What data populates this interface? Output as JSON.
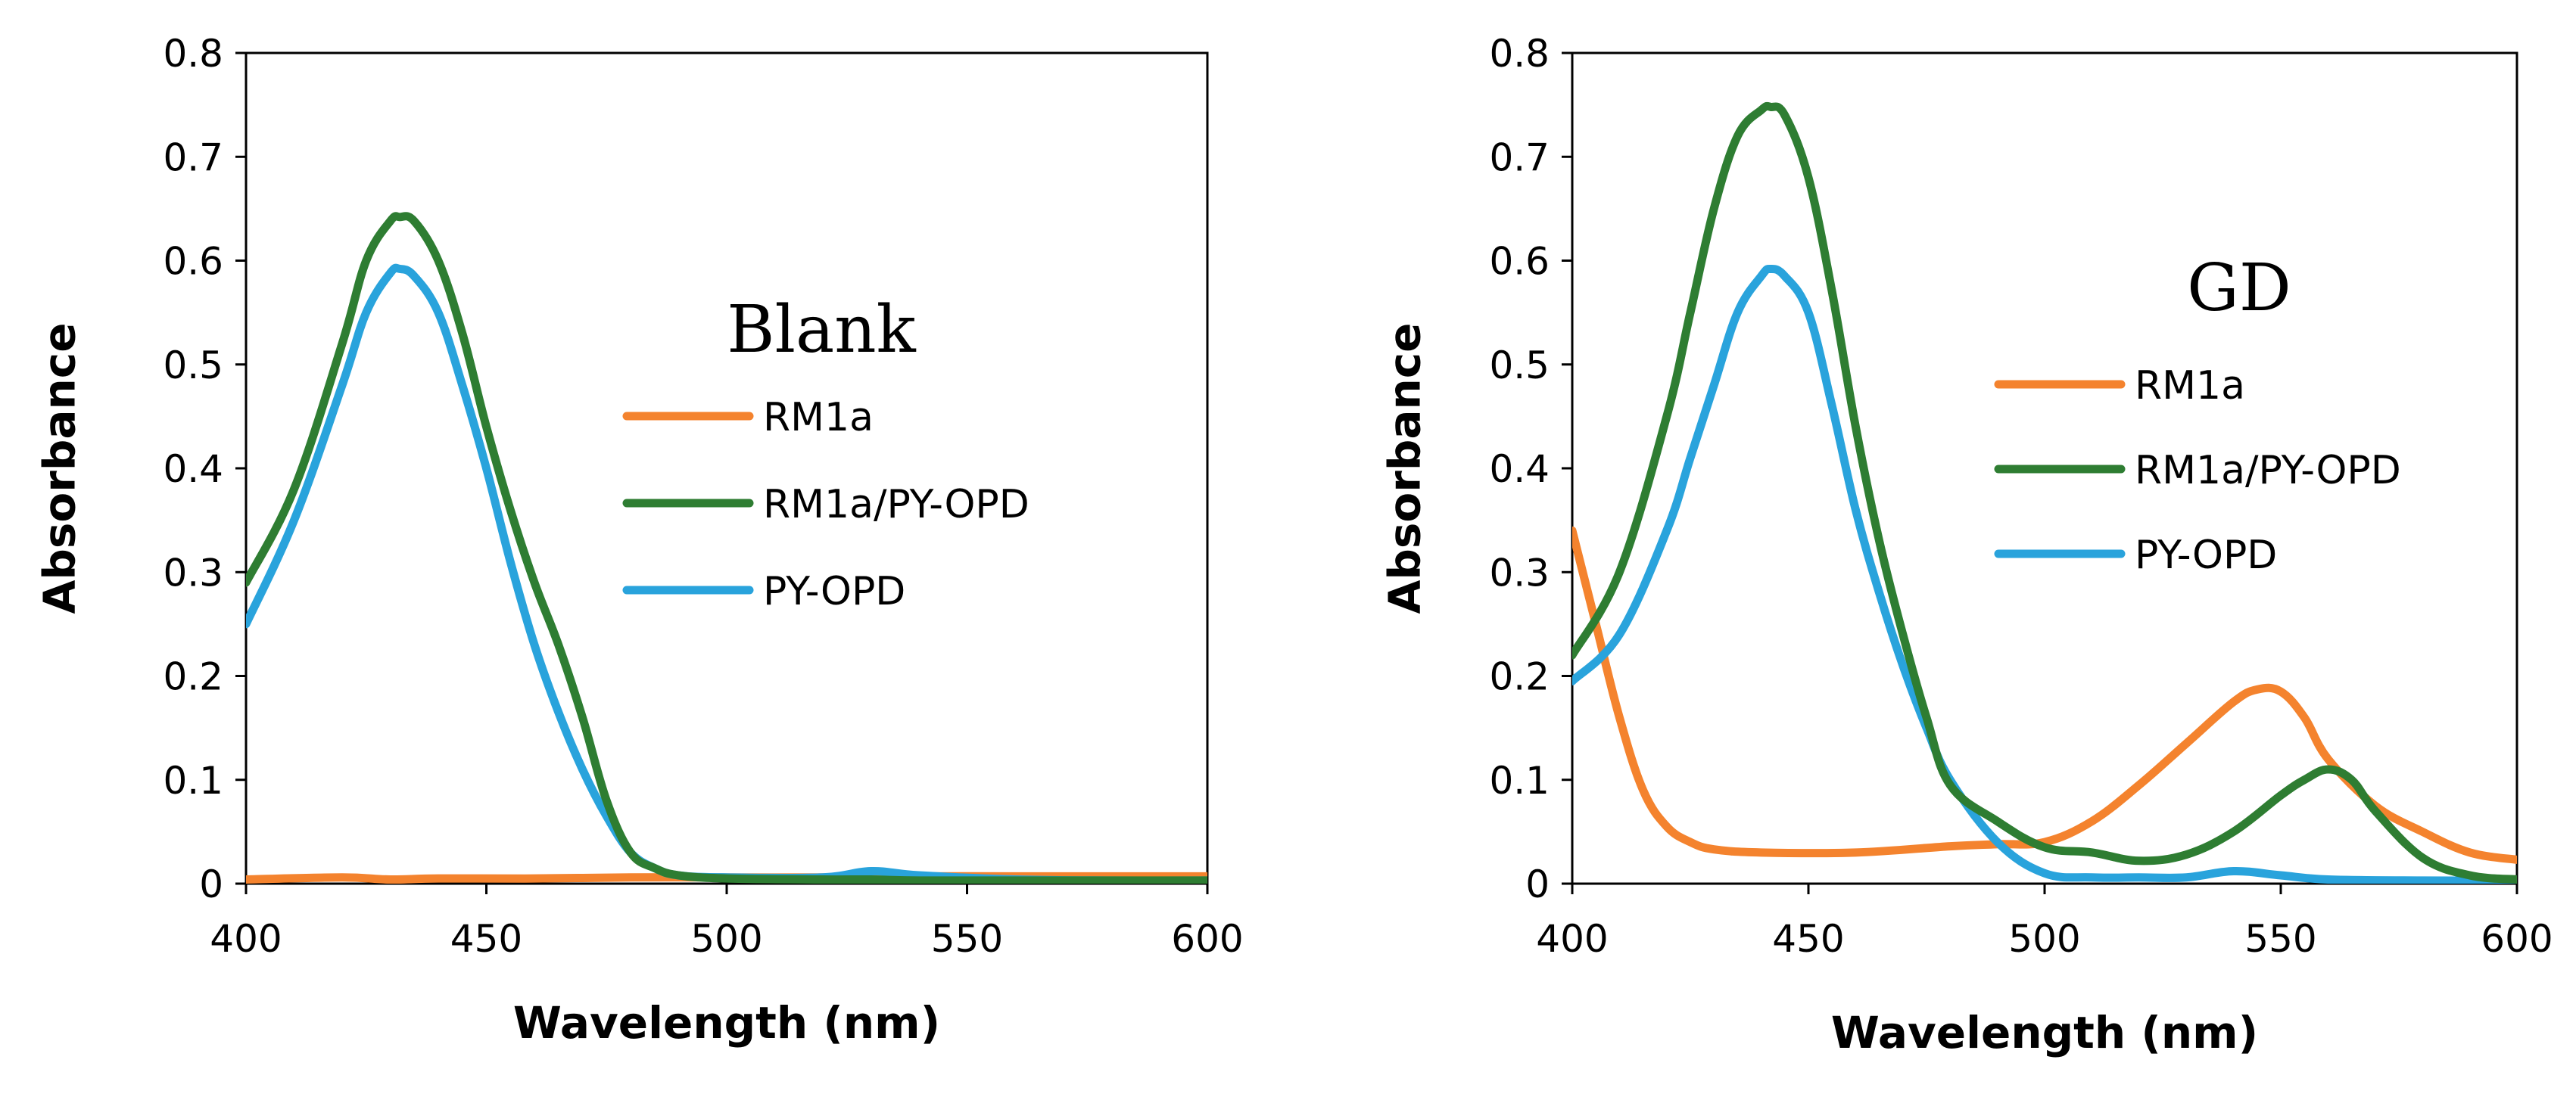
{
  "chart_data": [
    {
      "type": "line",
      "title": "Blank",
      "xlabel": "Wavelength (nm)",
      "ylabel": "Absorbance",
      "xlim": [
        400,
        600
      ],
      "ylim": [
        0,
        0.8
      ],
      "xticks": [
        400,
        450,
        500,
        550,
        600
      ],
      "xtick_labels": [
        "400",
        "450",
        "500",
        "550",
        "600"
      ],
      "yticks": [
        0,
        0.1,
        0.2,
        0.3,
        0.4,
        0.5,
        0.6,
        0.7,
        0.8
      ],
      "ytick_labels": [
        "0",
        "0.1",
        "0.2",
        "0.3",
        "0.4",
        "0.5",
        "0.6",
        "0.7",
        "0.8"
      ],
      "grid": false,
      "legend_position": "center-right",
      "series": [
        {
          "name": "RM1a",
          "color": "#F4832E",
          "x": [
            400,
            420,
            430,
            440,
            460,
            480,
            500,
            520,
            540,
            560,
            580,
            600
          ],
          "y": [
            0.004,
            0.006,
            0.004,
            0.005,
            0.005,
            0.006,
            0.006,
            0.006,
            0.007,
            0.007,
            0.007,
            0.007
          ]
        },
        {
          "name": "RM1a/PY-OPD",
          "color": "#2E7D32",
          "x": [
            400,
            410,
            420,
            425,
            430,
            432,
            435,
            440,
            445,
            450,
            455,
            460,
            465,
            470,
            475,
            480,
            485,
            490,
            500,
            520,
            530,
            540,
            560,
            580,
            600
          ],
          "y": [
            0.29,
            0.38,
            0.52,
            0.6,
            0.638,
            0.642,
            0.638,
            0.6,
            0.53,
            0.44,
            0.36,
            0.29,
            0.23,
            0.16,
            0.08,
            0.03,
            0.015,
            0.008,
            0.005,
            0.004,
            0.004,
            0.003,
            0.003,
            0.003,
            0.003
          ]
        },
        {
          "name": "PY-OPD",
          "color": "#29A3DC",
          "x": [
            400,
            410,
            420,
            425,
            430,
            432,
            435,
            440,
            445,
            450,
            455,
            460,
            465,
            470,
            475,
            480,
            485,
            490,
            500,
            520,
            530,
            540,
            560,
            580,
            600
          ],
          "y": [
            0.25,
            0.35,
            0.48,
            0.55,
            0.588,
            0.592,
            0.585,
            0.55,
            0.48,
            0.4,
            0.31,
            0.23,
            0.165,
            0.11,
            0.065,
            0.03,
            0.015,
            0.008,
            0.006,
            0.006,
            0.012,
            0.008,
            0.004,
            0.003,
            0.003
          ]
        }
      ]
    },
    {
      "type": "line",
      "title": "GD",
      "xlabel": "Wavelength (nm)",
      "ylabel": "Absorbance",
      "xlim": [
        400,
        600
      ],
      "ylim": [
        0,
        0.8
      ],
      "xticks": [
        400,
        450,
        500,
        550,
        600
      ],
      "xtick_labels": [
        "400",
        "450",
        "500",
        "550",
        "600"
      ],
      "yticks": [
        0,
        0.1,
        0.2,
        0.3,
        0.4,
        0.5,
        0.6,
        0.7,
        0.8
      ],
      "ytick_labels": [
        "0",
        "0.1",
        "0.2",
        "0.3",
        "0.4",
        "0.5",
        "0.6",
        "0.7",
        "0.8"
      ],
      "grid": false,
      "legend_position": "center-right",
      "series": [
        {
          "name": "RM1a",
          "color": "#F4832E",
          "x": [
            400,
            405,
            410,
            415,
            420,
            425,
            430,
            440,
            460,
            480,
            490,
            500,
            510,
            520,
            530,
            540,
            545,
            550,
            555,
            560,
            570,
            580,
            590,
            600
          ],
          "y": [
            0.34,
            0.25,
            0.16,
            0.09,
            0.055,
            0.04,
            0.033,
            0.03,
            0.03,
            0.036,
            0.038,
            0.04,
            0.06,
            0.095,
            0.135,
            0.175,
            0.187,
            0.185,
            0.16,
            0.12,
            0.075,
            0.05,
            0.03,
            0.023
          ]
        },
        {
          "name": "RM1a/PY-OPD",
          "color": "#2E7D32",
          "x": [
            400,
            410,
            420,
            425,
            430,
            435,
            440,
            442,
            445,
            450,
            455,
            460,
            465,
            470,
            475,
            480,
            490,
            500,
            510,
            520,
            530,
            540,
            550,
            555,
            560,
            565,
            570,
            580,
            590,
            600
          ],
          "y": [
            0.22,
            0.3,
            0.45,
            0.55,
            0.65,
            0.72,
            0.745,
            0.748,
            0.74,
            0.68,
            0.57,
            0.44,
            0.33,
            0.24,
            0.16,
            0.095,
            0.06,
            0.035,
            0.03,
            0.022,
            0.028,
            0.05,
            0.085,
            0.1,
            0.11,
            0.1,
            0.07,
            0.025,
            0.008,
            0.004
          ]
        },
        {
          "name": "PY-OPD",
          "color": "#29A3DC",
          "x": [
            400,
            410,
            420,
            425,
            430,
            435,
            440,
            442,
            445,
            450,
            455,
            460,
            465,
            470,
            475,
            480,
            490,
            500,
            510,
            520,
            530,
            540,
            550,
            560,
            580,
            600
          ],
          "y": [
            0.195,
            0.24,
            0.34,
            0.41,
            0.48,
            0.55,
            0.585,
            0.592,
            0.585,
            0.55,
            0.46,
            0.36,
            0.28,
            0.21,
            0.15,
            0.1,
            0.04,
            0.01,
            0.006,
            0.006,
            0.006,
            0.012,
            0.008,
            0.004,
            0.003,
            0.003
          ]
        }
      ]
    }
  ]
}
